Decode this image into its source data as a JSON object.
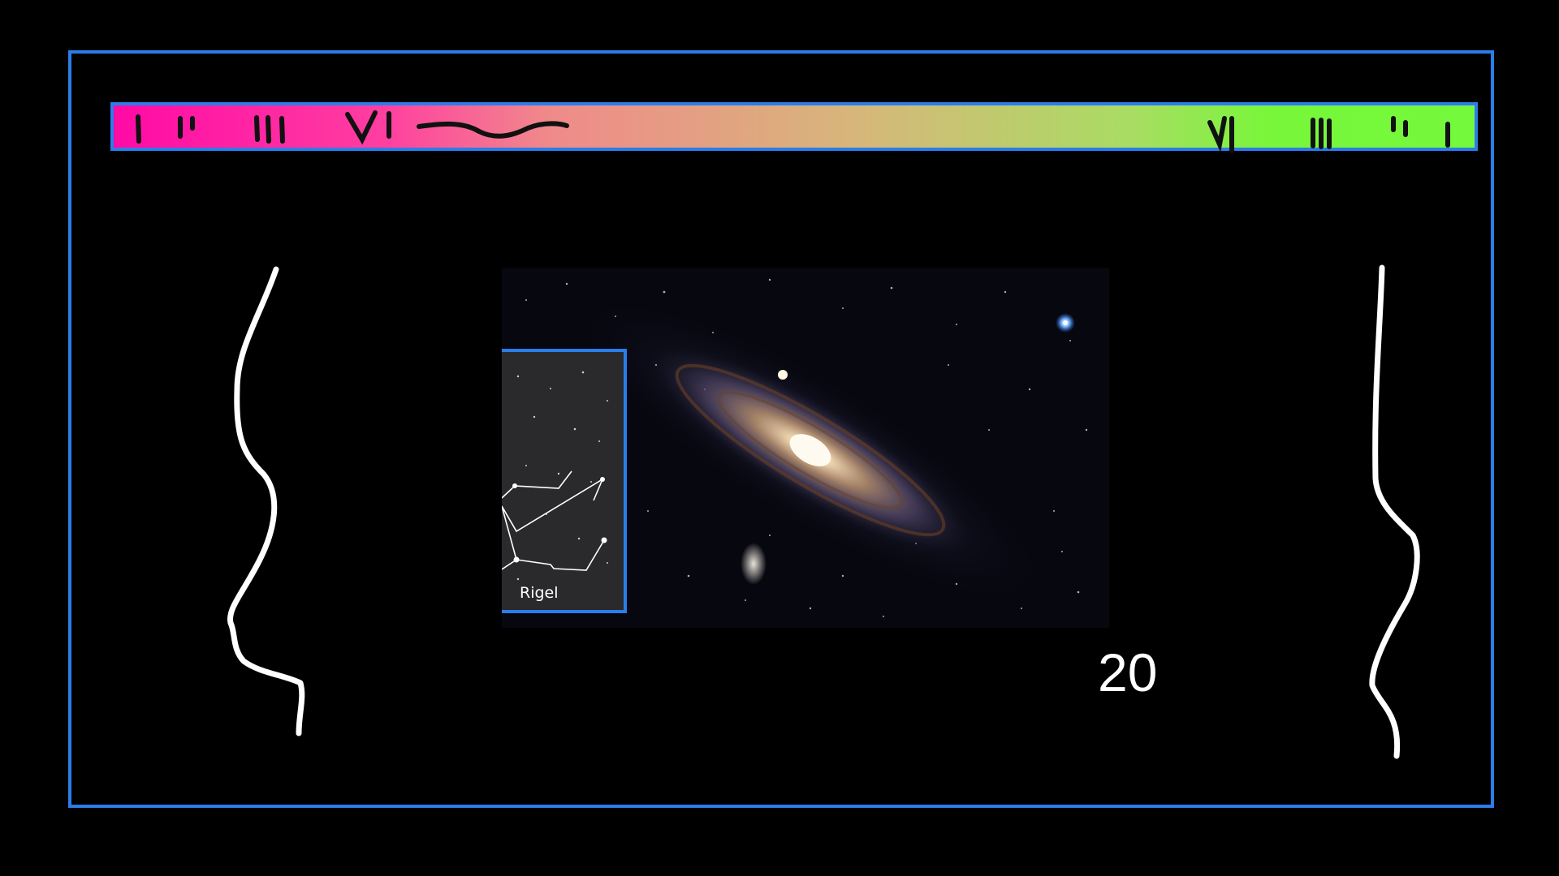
{
  "slide": {
    "number_label": "20",
    "inset_label": "Rigel"
  },
  "colors": {
    "background": "#000000",
    "frame_border": "#2b7de9",
    "gradient_left": "#ff0aa6",
    "gradient_right": "#74f93c",
    "handwriting": "#ffffff",
    "markings": "#111111"
  },
  "icons": {
    "galaxy_image": "andromeda-galaxy-photo",
    "constellation_inset": "orion-constellation-chart"
  }
}
